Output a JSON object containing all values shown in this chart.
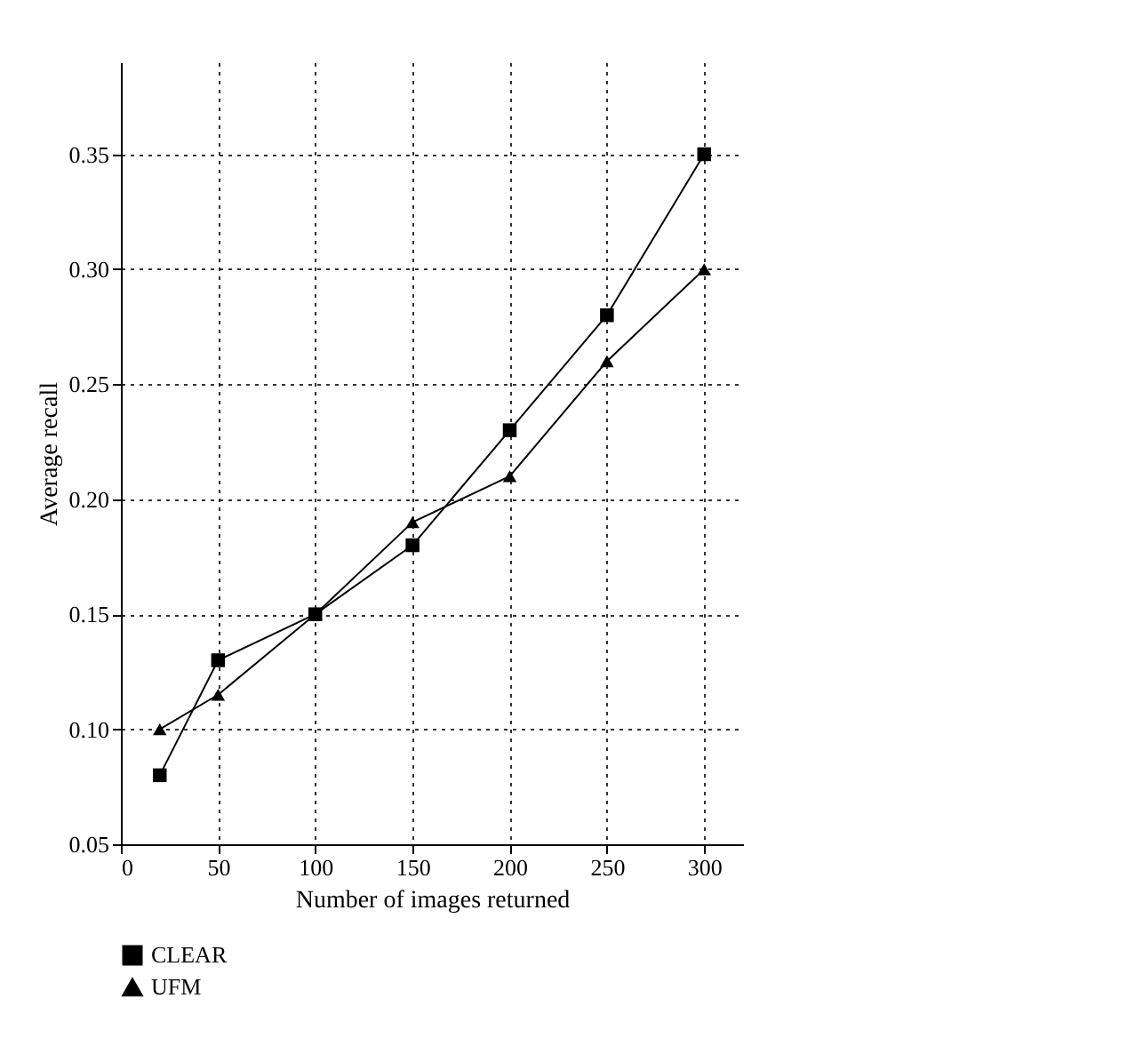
{
  "chart_data": {
    "type": "line",
    "xlabel": "Number of images returned",
    "ylabel": "Average recall",
    "x": [
      20,
      50,
      100,
      150,
      200,
      250,
      300
    ],
    "series": [
      {
        "name": "CLEAR",
        "color": "#000000",
        "marker": "square",
        "values": [
          0.08,
          0.13,
          0.15,
          0.18,
          0.23,
          0.28,
          0.35
        ]
      },
      {
        "name": "UFM",
        "color": "#000000",
        "marker": "triangle",
        "values": [
          0.1,
          0.115,
          0.15,
          0.19,
          0.21,
          0.26,
          0.3
        ]
      }
    ],
    "xlim": [
      0,
      320
    ],
    "xticks": [
      0,
      50,
      100,
      150,
      200,
      250,
      300
    ],
    "ylim": [
      0.05,
      0.39
    ],
    "yticks": [
      0.05,
      {
        "value": 0.1,
        "label": "0.10"
      },
      0.15,
      {
        "value": 0.2,
        "label": "0.20"
      },
      0.25,
      {
        "value": 0.3,
        "label": "0.30"
      },
      0.35
    ],
    "grid": true,
    "legend": "bottom",
    "line_style": "solid"
  }
}
